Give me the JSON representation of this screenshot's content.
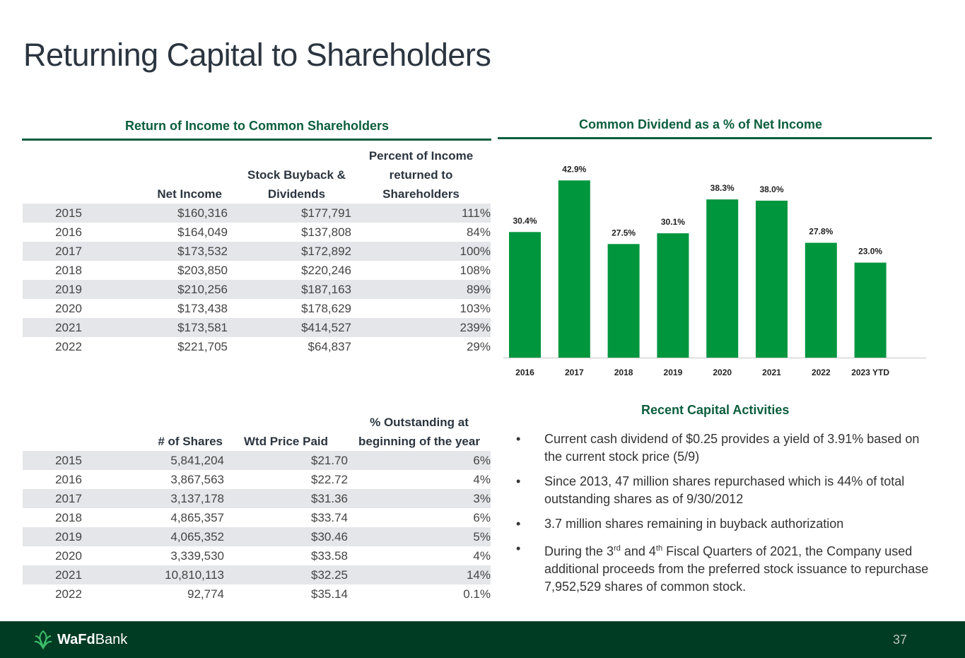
{
  "title": "Returning Capital to Shareholders",
  "income_section": {
    "title": "Return of Income to Common Shareholders",
    "headers": [
      "",
      "Net Income",
      "Stock Buyback & Dividends",
      "Percent of Income returned to Shareholders"
    ],
    "rows": [
      [
        "2015",
        "$160,316",
        "$177,791",
        "111%"
      ],
      [
        "2016",
        "$164,049",
        "$137,808",
        "84%"
      ],
      [
        "2017",
        "$173,532",
        "$172,892",
        "100%"
      ],
      [
        "2018",
        "$203,850",
        "$220,246",
        "108%"
      ],
      [
        "2019",
        "$210,256",
        "$187,163",
        "89%"
      ],
      [
        "2020",
        "$173,438",
        "$178,629",
        "103%"
      ],
      [
        "2021",
        "$173,581",
        "$414,527",
        "239%"
      ],
      [
        "2022",
        "$221,705",
        "$64,837",
        "29%"
      ]
    ]
  },
  "shares_section": {
    "headers": [
      "",
      "# of Shares",
      "Wtd Price Paid",
      "% Outstanding at beginning of the year"
    ],
    "rows": [
      [
        "2015",
        "5,841,204",
        "$21.70",
        "6%"
      ],
      [
        "2016",
        "3,867,563",
        "$22.72",
        "4%"
      ],
      [
        "2017",
        "3,137,178",
        "$31.36",
        "3%"
      ],
      [
        "2018",
        "4,865,357",
        "$33.74",
        "6%"
      ],
      [
        "2019",
        "4,065,352",
        "$30.46",
        "5%"
      ],
      [
        "2020",
        "3,339,530",
        "$33.58",
        "4%"
      ],
      [
        "2021",
        "10,810,113",
        "$32.25",
        "14%"
      ],
      [
        "2022",
        "92,774",
        "$35.14",
        "0.1%"
      ]
    ]
  },
  "dividend_section": {
    "title": "Common Dividend as a % of Net Income"
  },
  "chart_data": {
    "type": "bar",
    "title": "Common Dividend as a % of Net Income",
    "categories": [
      "2016",
      "2017",
      "2018",
      "2019",
      "2020",
      "2021",
      "2022",
      "2023 YTD"
    ],
    "values": [
      30.4,
      42.9,
      27.5,
      30.1,
      38.3,
      38.0,
      27.8,
      23.0
    ],
    "labels": [
      "30.4%",
      "42.9%",
      "27.5%",
      "30.1%",
      "38.3%",
      "38.0%",
      "27.8%",
      "23.0%"
    ],
    "ylim": [
      0,
      45
    ],
    "bar_color": "#00963e",
    "grid": false,
    "legend": "none"
  },
  "activities": {
    "title": "Recent Capital Activities",
    "bullet_glyph": "•",
    "items": [
      [
        "Current cash dividend of $0.25 provides a yield of 3.91% based on the current stock price (5/9)"
      ],
      [
        "Since 2013, 47 million shares repurchased which is 44% of total outstanding shares as of 9/30/2012"
      ],
      [
        "3.7 million shares remaining in buyback authorization"
      ],
      [
        "During the 3",
        "rd",
        " and 4",
        "th",
        " Fiscal Quarters of 2021, the Company used additional proceeds from the preferred stock issuance to repurchase 7,952,529 shares of common stock."
      ]
    ]
  },
  "footer": {
    "logo_bold": "WaFd",
    "logo_light": "Bank",
    "page_number": "37"
  },
  "colors": {
    "brand_green": "#0b5e3c",
    "footer_bg": "#003b24",
    "bar_green": "#00963e",
    "row_stripe": "#e4e6ea"
  }
}
